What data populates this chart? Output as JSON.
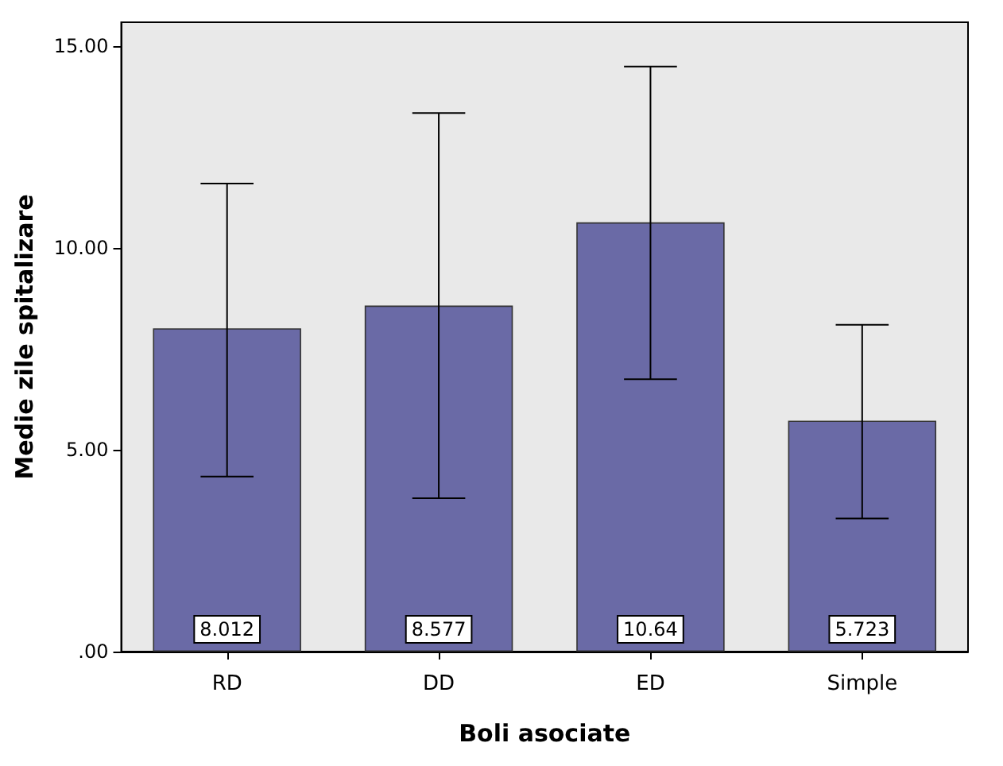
{
  "chart_data": {
    "type": "bar",
    "xlabel": "Boli asociate",
    "ylabel": "Medie zile spitalizare",
    "categories": [
      "RD",
      "DD",
      "ED",
      "Simple"
    ],
    "values": [
      8.012,
      8.577,
      10.64,
      5.723
    ],
    "errors": [
      [
        4.34,
        11.6
      ],
      [
        3.8,
        13.35
      ],
      [
        6.75,
        14.5
      ],
      [
        3.3,
        8.1
      ]
    ],
    "color": "#6a6aa6",
    "data_labels": true,
    "grid": false,
    "ylim": [
      0,
      15.6
    ],
    "yticks": [
      {
        "value": 0,
        "label": ".00"
      },
      {
        "value": 5,
        "label": "5.00"
      },
      {
        "value": 10,
        "label": "10.00"
      },
      {
        "value": 15,
        "label": "15.00"
      }
    ]
  }
}
